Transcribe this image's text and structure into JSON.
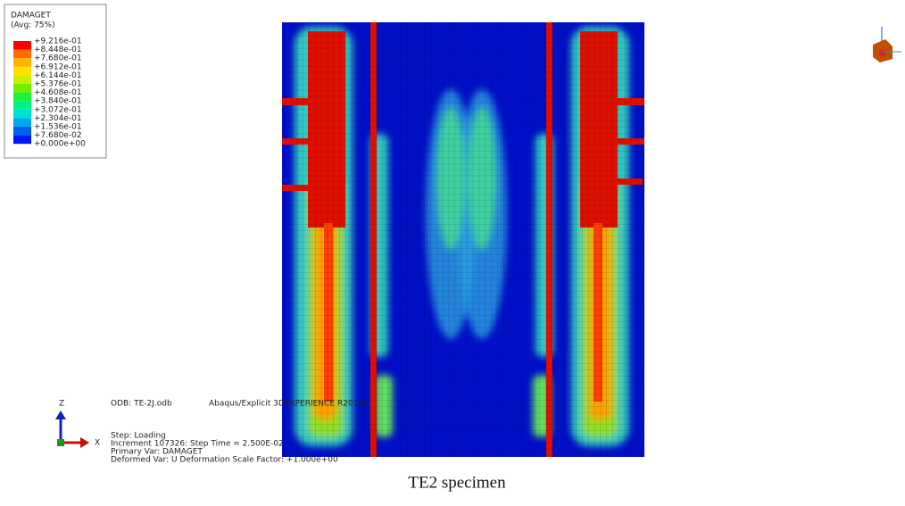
{
  "legend": {
    "title": "DAMAGET",
    "subtitle": "(Avg: 75%)",
    "labels": [
      "+9.216e-01",
      "+8.448e-01",
      "+7.680e-01",
      "+6.912e-01",
      "+6.144e-01",
      "+5.376e-01",
      "+4.608e-01",
      "+3.840e-01",
      "+3.072e-01",
      "+2.304e-01",
      "+1.536e-01",
      "+7.680e-02",
      "+0.000e+00"
    ]
  },
  "triad": {
    "z": "Z",
    "x": "X"
  },
  "info": {
    "odb": "ODB: TE-2J.odb",
    "solver": "Abaqus/Explicit 3DEXPERIENCE R2019x",
    "step": "Step: Loading",
    "increment": "Increment    107326: Step Time =    2.500E-02",
    "primary": "Primary Var: DAMAGET",
    "deformed": "Deformed Var: U   Deformation Scale Factor: +1.000e+00"
  },
  "caption": "TE2 specimen"
}
